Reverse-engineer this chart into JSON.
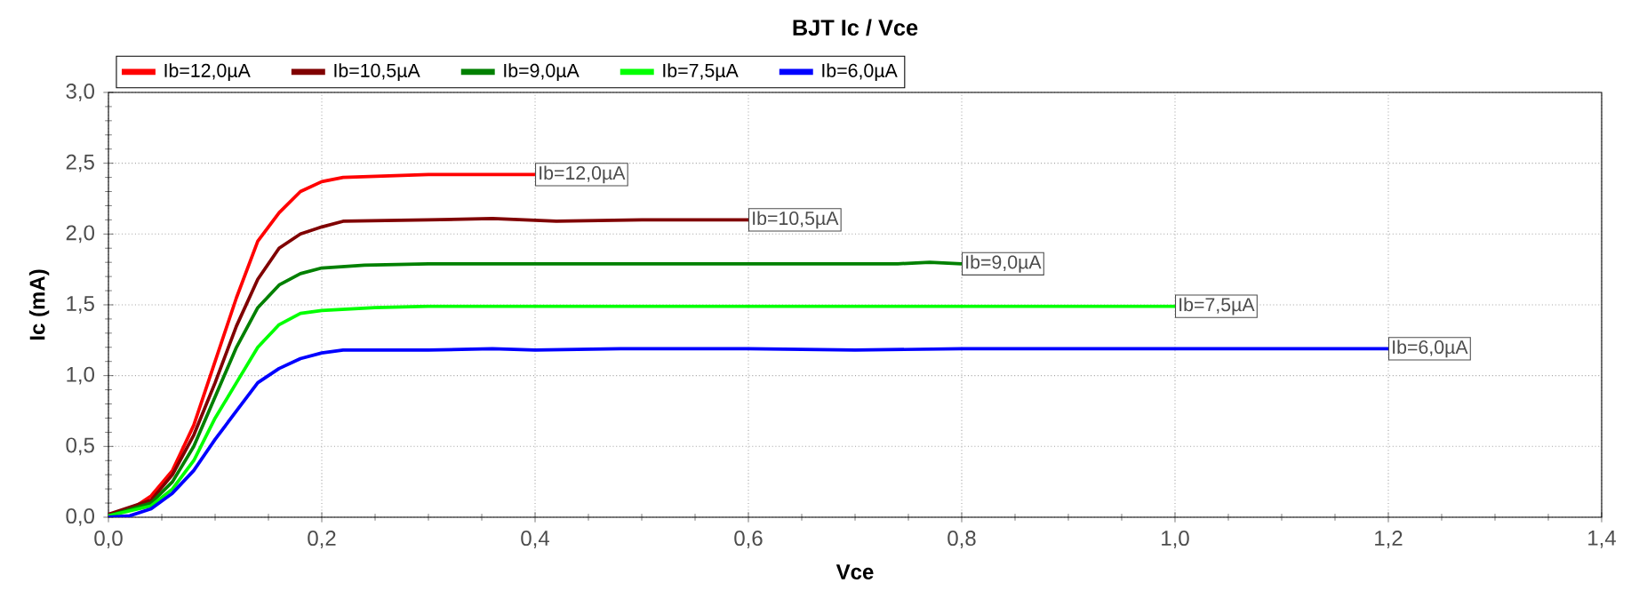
{
  "chart_data": {
    "type": "line",
    "title": "BJT Ic / Vce",
    "xlabel": "Vce",
    "ylabel": "Ic (mA)",
    "xlim": [
      0,
      1.4
    ],
    "ylim": [
      0,
      3
    ],
    "xticks": [
      {
        "value": 0,
        "label": "0,0"
      },
      {
        "value": 0.2,
        "label": "0,2"
      },
      {
        "value": 0.4,
        "label": "0,4"
      },
      {
        "value": 0.6,
        "label": "0,6"
      },
      {
        "value": 0.8,
        "label": "0,8"
      },
      {
        "value": 1.0,
        "label": "1,0"
      },
      {
        "value": 1.2,
        "label": "1,2"
      },
      {
        "value": 1.4,
        "label": "1,4"
      }
    ],
    "yticks": [
      {
        "value": 0,
        "label": "0,0"
      },
      {
        "value": 0.5,
        "label": "0,5"
      },
      {
        "value": 1.0,
        "label": "1,0"
      },
      {
        "value": 1.5,
        "label": "1,5"
      },
      {
        "value": 2.0,
        "label": "2,0"
      },
      {
        "value": 2.5,
        "label": "2,5"
      },
      {
        "value": 3.0,
        "label": "3,0"
      }
    ],
    "grid": true,
    "legend": "top left",
    "marker": "none",
    "line_style": "solid",
    "series": [
      {
        "name": "Ib=12,0µA",
        "color": "#ff0000",
        "x": [
          0,
          0.02,
          0.04,
          0.06,
          0.08,
          0.1,
          0.12,
          0.14,
          0.16,
          0.18,
          0.2,
          0.22,
          0.3,
          0.4
        ],
        "values": [
          0.02,
          0.05,
          0.15,
          0.33,
          0.65,
          1.1,
          1.55,
          1.95,
          2.15,
          2.3,
          2.37,
          2.4,
          2.42,
          2.42
        ]
      },
      {
        "name": "Ib=10,5µA",
        "color": "#800000",
        "x": [
          0,
          0.04,
          0.06,
          0.08,
          0.1,
          0.12,
          0.14,
          0.16,
          0.18,
          0.2,
          0.22,
          0.3,
          0.36,
          0.42,
          0.5,
          0.6
        ],
        "values": [
          0.02,
          0.12,
          0.3,
          0.58,
          0.95,
          1.35,
          1.68,
          1.9,
          2.0,
          2.05,
          2.09,
          2.1,
          2.11,
          2.09,
          2.1,
          2.1
        ]
      },
      {
        "name": "Ib=9,0µA",
        "color": "#008000",
        "x": [
          0,
          0.04,
          0.06,
          0.08,
          0.1,
          0.12,
          0.14,
          0.16,
          0.18,
          0.2,
          0.24,
          0.3,
          0.6,
          0.74,
          0.77,
          0.8
        ],
        "values": [
          0.01,
          0.1,
          0.25,
          0.5,
          0.85,
          1.2,
          1.48,
          1.64,
          1.72,
          1.76,
          1.78,
          1.79,
          1.79,
          1.79,
          1.8,
          1.79
        ]
      },
      {
        "name": "Ib=7,5µA",
        "color": "#00ff00",
        "x": [
          0,
          0.04,
          0.06,
          0.08,
          0.1,
          0.12,
          0.14,
          0.16,
          0.18,
          0.2,
          0.25,
          0.3,
          1.0
        ],
        "values": [
          0.01,
          0.08,
          0.2,
          0.4,
          0.7,
          0.95,
          1.2,
          1.36,
          1.44,
          1.46,
          1.48,
          1.49,
          1.49
        ]
      },
      {
        "name": "Ib=6,0µA",
        "color": "#0000ff",
        "x": [
          0,
          0.02,
          0.04,
          0.06,
          0.08,
          0.1,
          0.12,
          0.14,
          0.16,
          0.18,
          0.2,
          0.22,
          0.3,
          0.36,
          0.4,
          0.48,
          0.6,
          0.7,
          0.8,
          1.2
        ],
        "values": [
          0,
          0.01,
          0.06,
          0.17,
          0.33,
          0.55,
          0.75,
          0.95,
          1.05,
          1.12,
          1.16,
          1.18,
          1.18,
          1.19,
          1.18,
          1.19,
          1.19,
          1.18,
          1.19,
          1.19
        ]
      }
    ]
  }
}
